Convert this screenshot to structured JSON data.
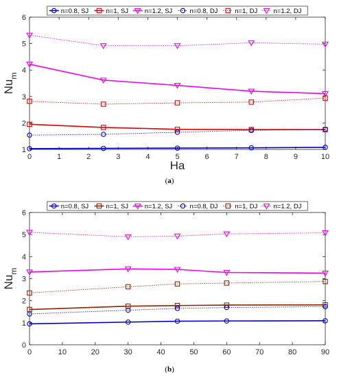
{
  "chart_data": [
    {
      "panel_label": "a",
      "type": "line",
      "xlabel": "Ha",
      "ylabel": "Nu",
      "ylabel_sub": "m",
      "xlim": [
        0,
        10
      ],
      "ylim": [
        1,
        6
      ],
      "xticks": [
        0,
        1,
        2,
        3,
        4,
        5,
        6,
        7,
        8,
        9,
        10
      ],
      "yticks": [
        1,
        2,
        3,
        4,
        5,
        6
      ],
      "x": [
        0,
        2.5,
        5,
        7.5,
        10
      ],
      "legend_position": "top",
      "series": [
        {
          "name": "n=0.8, SJ",
          "color": "#0000cc",
          "marker": "circle",
          "style": "solid",
          "width": 1.6,
          "values": [
            1.03,
            1.04,
            1.05,
            1.06,
            1.08
          ]
        },
        {
          "name": "n=1, SJ",
          "color": "#e00000",
          "marker": "square",
          "style": "solid",
          "width": 1.6,
          "values": [
            1.95,
            1.83,
            1.76,
            1.75,
            1.75
          ]
        },
        {
          "name": "n=1.2, SJ",
          "color": "#ee00ee",
          "marker": "triangle-down",
          "style": "solid",
          "width": 1.6,
          "values": [
            4.22,
            3.62,
            3.42,
            3.2,
            3.11
          ]
        },
        {
          "name": "n=0.8, DJ",
          "color": "#0000cc",
          "marker": "circle",
          "style": "dotted",
          "width": 0.9,
          "values": [
            1.54,
            1.57,
            1.65,
            1.72,
            1.76
          ]
        },
        {
          "name": "n=1, DJ",
          "color": "#e00000",
          "marker": "square",
          "style": "dotted",
          "width": 0.9,
          "values": [
            2.82,
            2.71,
            2.76,
            2.79,
            2.94
          ]
        },
        {
          "name": "n=1.2, DJ",
          "color": "#ee00ee",
          "marker": "triangle-down",
          "style": "dotted",
          "width": 0.9,
          "values": [
            5.32,
            4.92,
            4.92,
            5.03,
            4.98
          ]
        }
      ]
    },
    {
      "panel_label": "b",
      "type": "line",
      "xlabel": "",
      "ylabel": "Nu",
      "ylabel_sub": "m",
      "xlim": [
        0,
        90
      ],
      "ylim": [
        0,
        6
      ],
      "xticks": [
        0,
        10,
        20,
        30,
        40,
        50,
        60,
        70,
        80,
        90
      ],
      "yticks": [
        0,
        1,
        2,
        3,
        4,
        5,
        6
      ],
      "x": [
        0,
        30,
        45,
        60,
        90
      ],
      "legend_position": "top",
      "series": [
        {
          "name": "n=0.8, SJ",
          "color": "#0000cc",
          "marker": "circle",
          "style": "solid",
          "width": 1.6,
          "values": [
            0.95,
            1.03,
            1.07,
            1.08,
            1.09
          ]
        },
        {
          "name": "n=1, SJ",
          "color": "#8b2500",
          "marker": "square",
          "style": "solid",
          "width": 1.6,
          "values": [
            1.6,
            1.75,
            1.78,
            1.8,
            1.81
          ]
        },
        {
          "name": "n=1.2, SJ",
          "color": "#ee00ee",
          "marker": "triangle-down",
          "style": "solid",
          "width": 1.6,
          "values": [
            3.3,
            3.44,
            3.42,
            3.28,
            3.25
          ]
        },
        {
          "name": "n=0.8, DJ",
          "color": "#0000cc",
          "marker": "circle",
          "style": "dotted",
          "width": 0.9,
          "values": [
            1.4,
            1.57,
            1.65,
            1.69,
            1.73
          ]
        },
        {
          "name": "n=1, DJ",
          "color": "#8b2500",
          "marker": "square",
          "style": "dotted",
          "width": 0.9,
          "values": [
            2.35,
            2.63,
            2.76,
            2.8,
            2.87
          ]
        },
        {
          "name": "n=1.2, DJ",
          "color": "#ee00ee",
          "marker": "triangle-down",
          "style": "dotted",
          "width": 0.9,
          "values": [
            5.1,
            4.9,
            4.93,
            5.03,
            5.08
          ]
        }
      ]
    }
  ]
}
